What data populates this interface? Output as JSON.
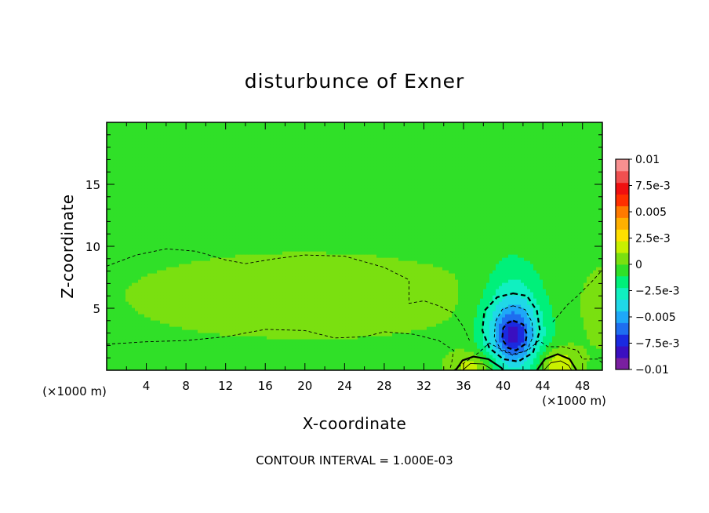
{
  "chart_data": {
    "type": "contour",
    "title": "disturbunce of Exner",
    "xlabel": "X-coordinate",
    "ylabel": "Z-coordinate",
    "x_unit_left": "(×1000 m)",
    "x_unit_right": "(×1000 m)",
    "footer": "CONTOUR INTERVAL = 1.000E-03",
    "xlim": [
      0,
      50
    ],
    "ylim": [
      0,
      20
    ],
    "x_ticks": [
      4,
      8,
      12,
      16,
      20,
      24,
      28,
      32,
      36,
      40,
      44,
      48
    ],
    "y_ticks": [
      5,
      10,
      15
    ],
    "colorbar": {
      "range": [
        -0.01,
        0.01
      ],
      "tick_values": [
        0.01,
        0.0075,
        0.005,
        0.0025,
        0,
        -0.0025,
        -0.005,
        -0.0075,
        -0.01
      ],
      "tick_labels": [
        "0.01",
        "7.5e-3",
        "0.005",
        "2.5e-3",
        "0",
        "−2.5e-3",
        "−0.005",
        "−7.5e-3",
        "−0.01"
      ],
      "colors": [
        "#7a1fa0",
        "#3a0fc0",
        "#1a2ae0",
        "#1e6ef0",
        "#1ea8f8",
        "#20d8e8",
        "#10f0c0",
        "#00f07a",
        "#30e028",
        "#7ae010",
        "#c8f000",
        "#ffe000",
        "#ffb000",
        "#ff7a00",
        "#ff3000",
        "#f01010",
        "#f05050",
        "#f89090"
      ]
    },
    "field": {
      "background": -0.0004,
      "features": [
        {
          "x": 41,
          "z": 2.8,
          "sx": 3.0,
          "sz": 3.2,
          "amp": -0.0055
        },
        {
          "x": 41,
          "z": 2.8,
          "sx": 1.3,
          "sz": 1.5,
          "amp": -0.0022
        },
        {
          "x": 41,
          "z": 6.5,
          "sx": 3.0,
          "sz": 3.5,
          "amp": -0.0014
        },
        {
          "x": 20,
          "z": 6.0,
          "sx": 18.0,
          "sz": 3.5,
          "amp": 0.0011
        },
        {
          "x": 37,
          "z": 0.3,
          "sx": 2.4,
          "sz": 1.3,
          "amp": 0.0022
        },
        {
          "x": 45.5,
          "z": 0.5,
          "sx": 2.0,
          "sz": 1.4,
          "amp": 0.0026
        },
        {
          "x": 18,
          "z": 0.5,
          "sx": 6.0,
          "sz": 1.2,
          "amp": -0.0006
        },
        {
          "x": 41,
          "z": 17.5,
          "sx": 5.0,
          "sz": 3.0,
          "amp": -0.0004
        },
        {
          "x": 50,
          "z": 5.0,
          "sx": 2.5,
          "sz": 4.0,
          "amp": 0.0007
        }
      ]
    },
    "contours": [
      {
        "value": -0.001,
        "style": "dashed",
        "weight": "thin",
        "points": [
          [
            0,
            8.4
          ],
          [
            3,
            9.3
          ],
          [
            6,
            9.8
          ],
          [
            9,
            9.6
          ],
          [
            12,
            8.9
          ],
          [
            14,
            8.6
          ],
          [
            17,
            9.0
          ],
          [
            20,
            9.3
          ],
          [
            24,
            9.2
          ],
          [
            28,
            8.3
          ],
          [
            30.5,
            7.3
          ],
          [
            30.5,
            5.4
          ],
          [
            32,
            5.6
          ],
          [
            33.5,
            5.2
          ],
          [
            35,
            4.6
          ],
          [
            36,
            3.5
          ],
          [
            36.6,
            2.4
          ]
        ]
      },
      {
        "value": -0.001,
        "style": "dashed",
        "weight": "thin",
        "points": [
          [
            0,
            2.1
          ],
          [
            4,
            2.3
          ],
          [
            8,
            2.4
          ],
          [
            12,
            2.7
          ],
          [
            16,
            3.3
          ],
          [
            20,
            3.2
          ],
          [
            23,
            2.6
          ],
          [
            26,
            2.7
          ],
          [
            28,
            3.1
          ],
          [
            31,
            2.9
          ],
          [
            33.5,
            2.4
          ],
          [
            35,
            1.6
          ],
          [
            34.8,
            0.6
          ],
          [
            34.6,
            0
          ]
        ]
      },
      {
        "value": -0.001,
        "style": "dashed",
        "weight": "thin",
        "points": [
          [
            35,
            0
          ],
          [
            37.5,
            1.4
          ],
          [
            38.6,
            2.2
          ],
          [
            39.5,
            1.8
          ],
          [
            41,
            1.3
          ],
          [
            42.5,
            1.6
          ],
          [
            43.6,
            2.4
          ],
          [
            44.5,
            1.9
          ],
          [
            46,
            1.9
          ],
          [
            47.5,
            1.6
          ],
          [
            48,
            0.9
          ],
          [
            49.5,
            0.9
          ],
          [
            50,
            0.6
          ]
        ]
      },
      {
        "value": -0.001,
        "style": "dashed",
        "weight": "thin",
        "points": [
          [
            45,
            3.9
          ],
          [
            46.5,
            5.3
          ],
          [
            47.5,
            6.0
          ],
          [
            49,
            7.2
          ],
          [
            50,
            8.1
          ]
        ]
      },
      {
        "value": -0.002,
        "style": "dashed",
        "weight": "thick",
        "closed": true,
        "points": [
          [
            41,
            6.2
          ],
          [
            42.4,
            6.0
          ],
          [
            43.4,
            4.8
          ],
          [
            43.7,
            3.2
          ],
          [
            43.0,
            1.4
          ],
          [
            41.5,
            0.7
          ],
          [
            40.0,
            0.9
          ],
          [
            38.6,
            1.8
          ],
          [
            37.9,
            3.2
          ],
          [
            38.1,
            4.8
          ],
          [
            39.4,
            5.9
          ]
        ]
      },
      {
        "value": -0.003,
        "style": "dashed",
        "weight": "thin",
        "closed": true,
        "points": [
          [
            41,
            5.2
          ],
          [
            42.2,
            4.9
          ],
          [
            42.9,
            3.9
          ],
          [
            43.0,
            2.7
          ],
          [
            42.4,
            1.6
          ],
          [
            41,
            1.2
          ],
          [
            39.8,
            1.6
          ],
          [
            39.1,
            2.6
          ],
          [
            39.2,
            3.9
          ],
          [
            39.9,
            4.9
          ]
        ]
      },
      {
        "value": -0.004,
        "style": "dashed",
        "weight": "thick",
        "closed": true,
        "points": [
          [
            41,
            4.0
          ],
          [
            42.0,
            3.7
          ],
          [
            42.4,
            2.9
          ],
          [
            42.2,
            2.1
          ],
          [
            41.3,
            1.6
          ],
          [
            40.5,
            1.8
          ],
          [
            39.9,
            2.5
          ],
          [
            40.0,
            3.4
          ],
          [
            40.4,
            3.8
          ]
        ]
      },
      {
        "value": 0.001,
        "style": "solid",
        "weight": "thick",
        "points": [
          [
            35.2,
            0
          ],
          [
            35.9,
            0.8
          ],
          [
            37,
            1.1
          ],
          [
            38.5,
            0.9
          ],
          [
            39.8,
            0.2
          ],
          [
            40,
            0
          ]
        ]
      },
      {
        "value": 0.002,
        "style": "solid",
        "weight": "thin",
        "points": [
          [
            35.9,
            0
          ],
          [
            36.7,
            0.55
          ],
          [
            38,
            0.5
          ],
          [
            39,
            0
          ]
        ]
      },
      {
        "value": 0.001,
        "style": "solid",
        "weight": "thick",
        "points": [
          [
            43.4,
            0
          ],
          [
            44.2,
            0.9
          ],
          [
            45.5,
            1.3
          ],
          [
            46.7,
            0.9
          ],
          [
            47.4,
            0
          ]
        ]
      },
      {
        "value": 0.002,
        "style": "solid",
        "weight": "thin",
        "points": [
          [
            44.1,
            0
          ],
          [
            44.8,
            0.6
          ],
          [
            45.8,
            0.75
          ],
          [
            46.6,
            0.4
          ],
          [
            46.9,
            0
          ]
        ]
      }
    ]
  }
}
